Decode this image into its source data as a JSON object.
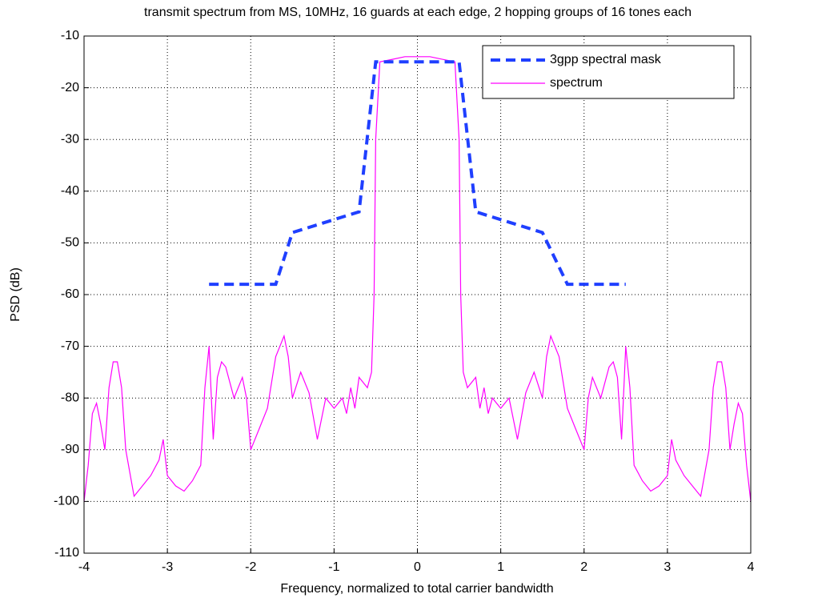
{
  "chart_data": {
    "type": "line",
    "title": "transmit spectrum from MS, 10MHz, 16 guards at each edge, 2 hopping groups of 16 tones each",
    "x_label": "Frequency, normalized to total carrier bandwidth",
    "y_label": "PSD (dB)",
    "xlim": [
      -4,
      4
    ],
    "xticks": [
      -4,
      -3,
      -2,
      -1,
      0,
      1,
      2,
      3,
      4
    ],
    "ylim": [
      -110,
      -10
    ],
    "yticks": [
      -110,
      -100,
      -90,
      -80,
      -70,
      -60,
      -50,
      -40,
      -30,
      -20,
      -10
    ],
    "grid": true,
    "legend": "upper right",
    "series": [
      {
        "name": "3gpp spectral mask",
        "color": "#1f3fff",
        "style": "dashed",
        "x": [
          -2.5,
          -1.7,
          -1.5,
          -0.7,
          -0.5,
          0.5,
          0.7,
          1.5,
          1.8,
          2.5
        ],
        "values": [
          -58,
          -58,
          -48,
          -44,
          -15,
          -15,
          -44,
          -48,
          -58,
          -58
        ]
      },
      {
        "name": "spectrum",
        "color": "#ff00ff",
        "style": "solid",
        "x": [
          -4,
          -3.95,
          -3.9,
          -3.85,
          -3.8,
          -3.75,
          -3.7,
          -3.65,
          -3.6,
          -3.55,
          -3.5,
          -3.4,
          -3.3,
          -3.2,
          -3.1,
          -3.05,
          -3.0,
          -2.9,
          -2.8,
          -2.7,
          -2.6,
          -2.55,
          -2.5,
          -2.45,
          -2.4,
          -2.35,
          -2.3,
          -2.2,
          -2.1,
          -2.05,
          -2.0,
          -1.9,
          -1.8,
          -1.7,
          -1.6,
          -1.55,
          -1.5,
          -1.4,
          -1.3,
          -1.2,
          -1.1,
          -1.0,
          -0.9,
          -0.85,
          -0.8,
          -0.75,
          -0.7,
          -0.6,
          -0.55,
          -0.52,
          -0.5,
          -0.45,
          -0.3,
          -0.15,
          0,
          0.15,
          0.3,
          0.45,
          0.5,
          0.52,
          0.55,
          0.6,
          0.7,
          0.75,
          0.8,
          0.85,
          0.9,
          1.0,
          1.1,
          1.2,
          1.3,
          1.4,
          1.5,
          1.55,
          1.6,
          1.7,
          1.8,
          1.9,
          2.0,
          2.05,
          2.1,
          2.2,
          2.3,
          2.35,
          2.4,
          2.45,
          2.5,
          2.55,
          2.6,
          2.7,
          2.8,
          2.9,
          3.0,
          3.05,
          3.1,
          3.2,
          3.3,
          3.4,
          3.5,
          3.55,
          3.6,
          3.65,
          3.7,
          3.75,
          3.8,
          3.85,
          3.9,
          3.95,
          4.0
        ],
        "values": [
          -100,
          -93,
          -83,
          -81,
          -85,
          -90,
          -78,
          -73,
          -73,
          -78,
          -90,
          -99,
          -97,
          -95,
          -92,
          -88,
          -95,
          -97,
          -98,
          -96,
          -93,
          -78,
          -70,
          -88,
          -76,
          -73,
          -74,
          -80,
          -76,
          -80,
          -90,
          -86,
          -82,
          -72,
          -68,
          -72,
          -80,
          -75,
          -79,
          -88,
          -80,
          -82,
          -80,
          -83,
          -78,
          -82,
          -76,
          -78,
          -75,
          -60,
          -30,
          -15,
          -14.5,
          -14,
          -14,
          -14,
          -14.5,
          -15,
          -30,
          -60,
          -75,
          -78,
          -76,
          -82,
          -78,
          -83,
          -80,
          -82,
          -80,
          -88,
          -79,
          -75,
          -80,
          -72,
          -68,
          -72,
          -82,
          -86,
          -90,
          -80,
          -76,
          -80,
          -74,
          -73,
          -76,
          -88,
          -70,
          -78,
          -93,
          -96,
          -98,
          -97,
          -95,
          -88,
          -92,
          -95,
          -97,
          -99,
          -90,
          -78,
          -73,
          -73,
          -78,
          -90,
          -85,
          -81,
          -83,
          -93,
          -100
        ]
      }
    ]
  }
}
